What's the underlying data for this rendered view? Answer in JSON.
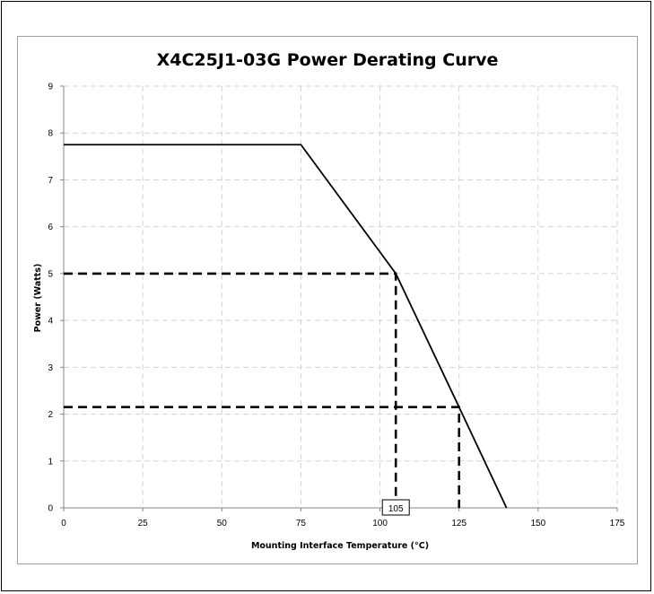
{
  "chart_data": {
    "type": "line",
    "title": "X4C25J1-03G Power Derating Curve",
    "xlabel": "Mounting Interface Temperature (°C)",
    "ylabel": "Power (Watts)",
    "xlim": [
      0,
      175
    ],
    "ylim": [
      0,
      9
    ],
    "xticks": [
      0,
      25,
      50,
      75,
      100,
      125,
      150,
      175
    ],
    "yticks": [
      0,
      1,
      2,
      3,
      4,
      5,
      6,
      7,
      8,
      9
    ],
    "grid": true,
    "series": [
      {
        "x": [
          0,
          75,
          105,
          125,
          140
        ],
        "y": [
          7.75,
          7.75,
          5.0,
          2.15,
          0
        ]
      }
    ],
    "reference_lines": [
      {
        "points": [
          [
            0,
            5.0
          ],
          [
            105,
            5.0
          ],
          [
            105,
            0
          ]
        ]
      },
      {
        "points": [
          [
            0,
            2.15
          ],
          [
            125,
            2.15
          ],
          [
            125,
            0
          ]
        ]
      }
    ],
    "annotations": [
      {
        "text": "105",
        "x": 105,
        "y": 0
      }
    ]
  }
}
